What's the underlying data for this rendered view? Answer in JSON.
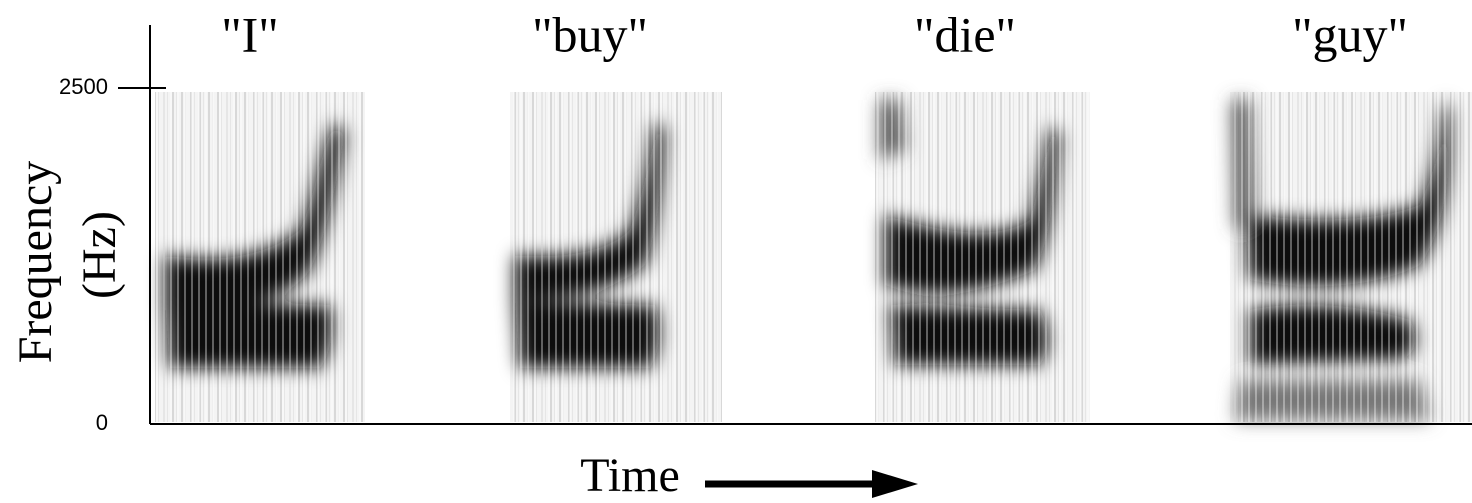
{
  "chart_data": {
    "type": "spectrogram",
    "categories": [
      "\"I\"",
      "\"buy\"",
      "\"die\"",
      "\"guy\""
    ],
    "ylabel": [
      "Frequency",
      "(Hz)"
    ],
    "xlabel": "Time",
    "ylim": [
      0,
      2500
    ],
    "yticks": [
      0,
      2500
    ]
  }
}
